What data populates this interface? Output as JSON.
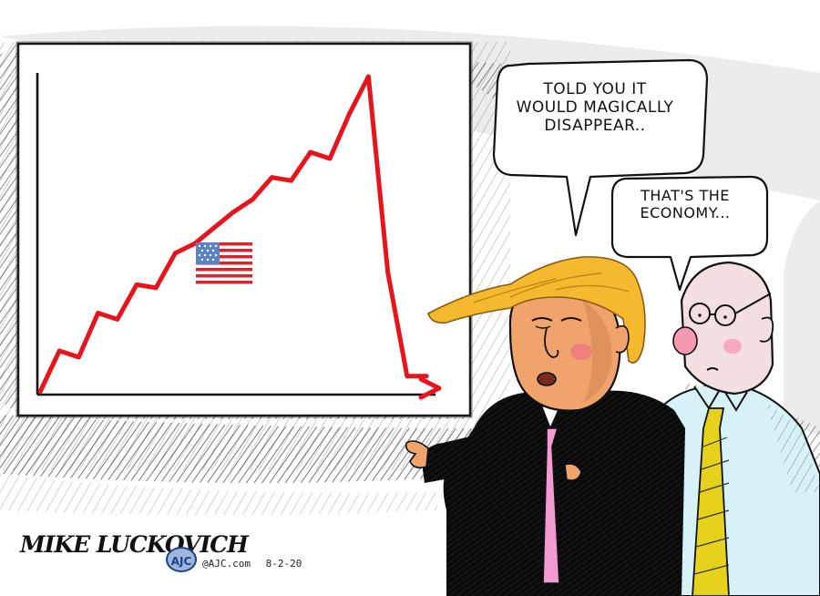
{
  "cartoon": {
    "bubbles": [
      {
        "lines": [
          "TOLD YOU IT",
          "WOULD MAGICALLY",
          "DISAPPEAR.."
        ]
      },
      {
        "lines": [
          "THAT'S THE",
          "ECONOMY..."
        ]
      }
    ],
    "signature": "MIKE LUCKOVICH",
    "badge": "AJC",
    "site": "@AJC.com",
    "date": "8-2-20",
    "chart_data": {
      "type": "line",
      "title": "",
      "xlabel": "",
      "ylabel": "",
      "x": [
        0,
        1,
        2,
        3,
        4,
        5,
        6,
        7,
        8,
        9,
        10,
        11,
        12,
        13,
        14,
        15,
        16,
        17,
        18,
        19,
        20
      ],
      "y": [
        0,
        13,
        11,
        25,
        23,
        34,
        33,
        44,
        47,
        52,
        57,
        61,
        68,
        67,
        76,
        74,
        88,
        100,
        38,
        5,
        5
      ],
      "ylim": [
        0,
        100
      ],
      "grid": false,
      "color": "#e8141b"
    },
    "colors": {
      "chart_line": "#e8141b",
      "tie_trump": "#f29ad2",
      "tie_staffer": "#e6d21c",
      "shirt_staffer": "#d6f1f8",
      "hair": "#f4b92e",
      "skin": "#f0a36b"
    }
  }
}
